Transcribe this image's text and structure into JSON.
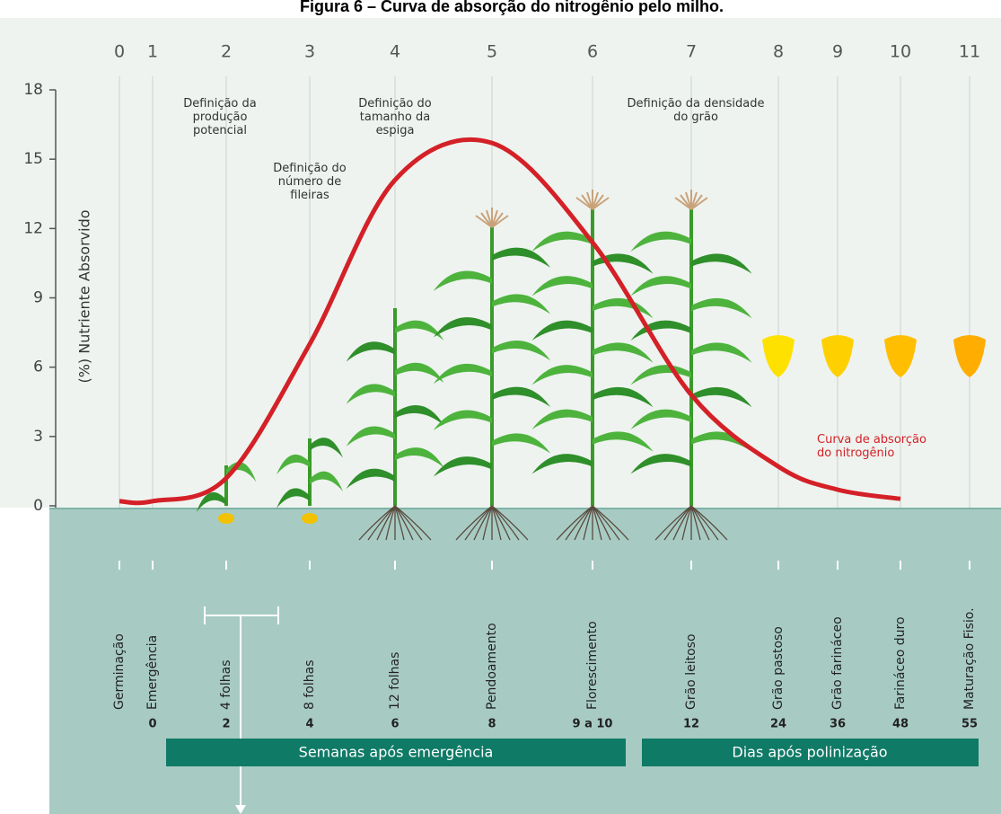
{
  "chart_data": {
    "type": "line",
    "title": "Figura 6 – Curva de absorção do nitrogênio pelo milho.",
    "y_label": "(%) Nutriente Absorvido",
    "x": [
      0,
      1,
      2,
      3,
      4,
      5,
      6,
      7,
      8,
      9,
      10
    ],
    "series": [
      {
        "name": "Curva de absorção do nitrogênio",
        "color": "#d42027",
        "values": [
          0.2,
          0.2,
          1.2,
          7.0,
          14.1,
          15.7,
          11.4,
          4.8,
          1.7,
          0.7,
          0.3
        ]
      }
    ],
    "xlim": [
      0,
      11
    ],
    "xticks": [
      0,
      1,
      2,
      3,
      4,
      5,
      6,
      7,
      8,
      9,
      10,
      11
    ],
    "ylim": [
      0,
      18
    ],
    "yticks": [
      0,
      3,
      6,
      9,
      12,
      15,
      18
    ],
    "annotations": [
      "Definição da produção potencial",
      "Definição do número de fileiras",
      "Definição do tamanho da espiga",
      "Definição da densidade do grão"
    ],
    "stages": [
      "Germinação",
      "Emergência",
      "4 folhas",
      "8 folhas",
      "12 folhas",
      "Pendoamento",
      "Florescimento",
      "Grão leitoso",
      "Grão pastoso",
      "Grão farináceo",
      "Farináceo duro",
      "Maturação Fisio."
    ],
    "timing": [
      null,
      "0",
      "2",
      "4",
      "6",
      "8",
      "9 a 10",
      "12",
      "24",
      "36",
      "48",
      "55"
    ],
    "periods": [
      "Semanas após emergência",
      "Dias após polinização"
    ]
  }
}
